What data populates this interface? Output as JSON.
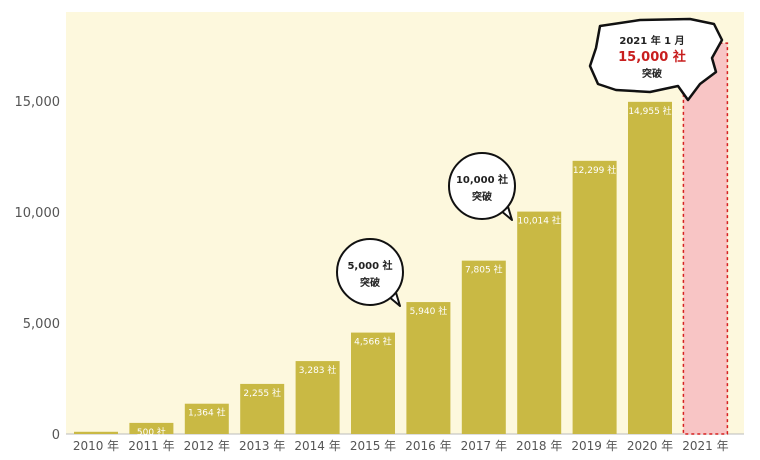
{
  "chart_data": {
    "type": "bar",
    "categories": [
      "2010 年",
      "2011 年",
      "2012 年",
      "2013 年",
      "2014 年",
      "2015 年",
      "2016 年",
      "2017 年",
      "2018 年",
      "2019 年",
      "2020 年",
      "2021 年"
    ],
    "values": [
      100,
      500,
      1364,
      2255,
      3283,
      4566,
      5940,
      7805,
      10014,
      12299,
      14955,
      17600
    ],
    "data_labels": [
      "",
      "500 社",
      "1,364 社",
      "2,255 社",
      "3,283 社",
      "4,566 社",
      "5,940 社",
      "7,805 社",
      "10,014 社",
      "12,299 社",
      "14,955 社",
      ""
    ],
    "highlight_category": "2021 年",
    "ylim": [
      0,
      19000
    ],
    "yticks": [
      0,
      5000,
      10000,
      15000
    ],
    "ytick_labels": [
      "0",
      "5,000",
      "10,000",
      "15,000"
    ],
    "grid": false,
    "colors": {
      "bar": "#c9b944",
      "highlight_fill": "#f8c5c5",
      "highlight_border": "#d62020",
      "plot_background": "#fdf8dd"
    },
    "callouts": [
      {
        "category": "2015 年",
        "lines": [
          "5,000 社",
          "突破"
        ]
      },
      {
        "category": "2017 年",
        "lines": [
          "10,000 社",
          "突破"
        ]
      },
      {
        "category": "2021 年",
        "lines": [
          "2021 年 1 月",
          "15,000 社",
          "突破"
        ]
      }
    ]
  }
}
